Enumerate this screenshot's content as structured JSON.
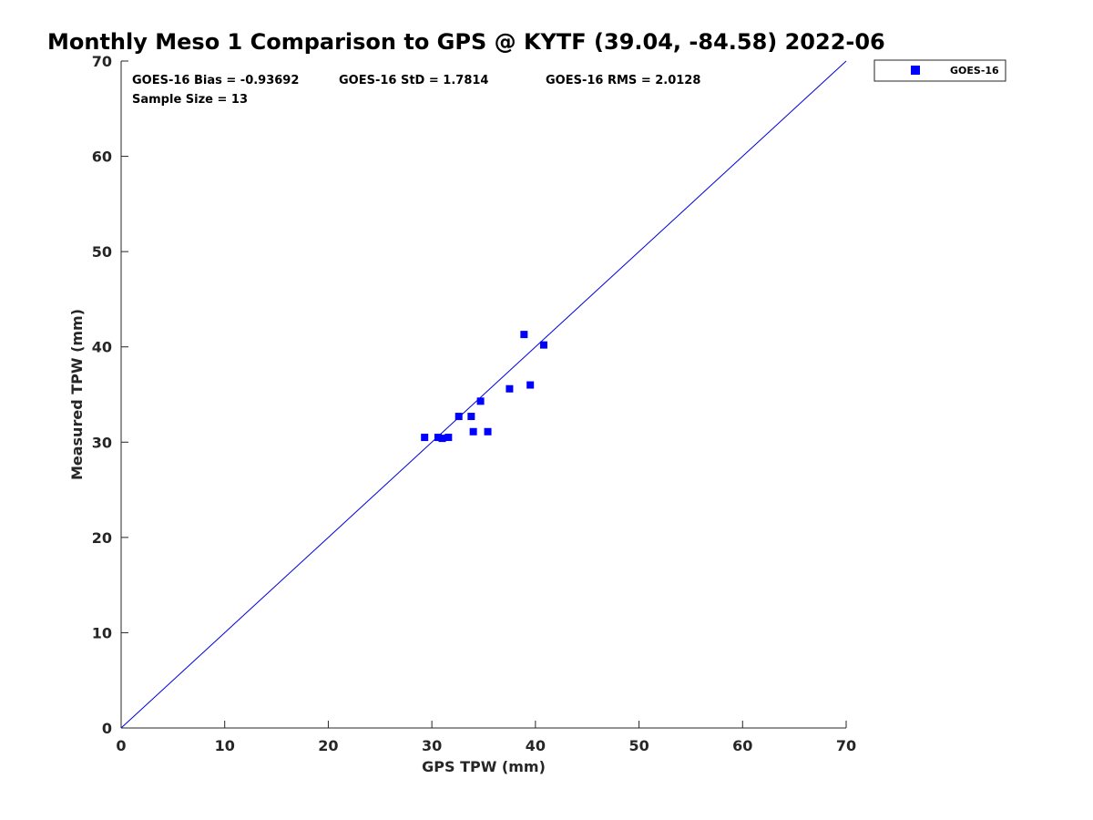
{
  "chart_data": {
    "type": "scatter",
    "title": "Monthly Meso 1 Comparison to GPS @ KYTF (39.04, -84.58) 2022-06",
    "xlabel": "GPS TPW (mm)",
    "ylabel": "Measured TPW (mm)",
    "xlim": [
      0,
      70
    ],
    "ylim": [
      0,
      70
    ],
    "xticks": [
      0,
      10,
      20,
      30,
      40,
      50,
      60,
      70
    ],
    "yticks": [
      0,
      10,
      20,
      30,
      40,
      50,
      60,
      70
    ],
    "grid": false,
    "legend_position": "outside-top-right",
    "reference_line": {
      "from": [
        0,
        0
      ],
      "to": [
        70,
        70
      ],
      "color": "#0000dd"
    },
    "stats": {
      "bias": "GOES-16 Bias = -0.93692",
      "std": "GOES-16 StD = 1.7814",
      "rms": "GOES-16 RMS = 2.0128",
      "sample_size": "Sample Size = 13"
    },
    "series": [
      {
        "name": "GOES-16",
        "color": "#0000ff",
        "marker": "square",
        "x": [
          29.3,
          30.6,
          31.0,
          31.6,
          32.6,
          33.8,
          34.0,
          34.7,
          35.4,
          37.5,
          38.9,
          39.5,
          40.8
        ],
        "y": [
          30.5,
          30.5,
          30.4,
          30.5,
          32.7,
          32.7,
          31.1,
          34.3,
          31.1,
          35.6,
          41.3,
          36.0,
          40.2
        ]
      }
    ]
  }
}
